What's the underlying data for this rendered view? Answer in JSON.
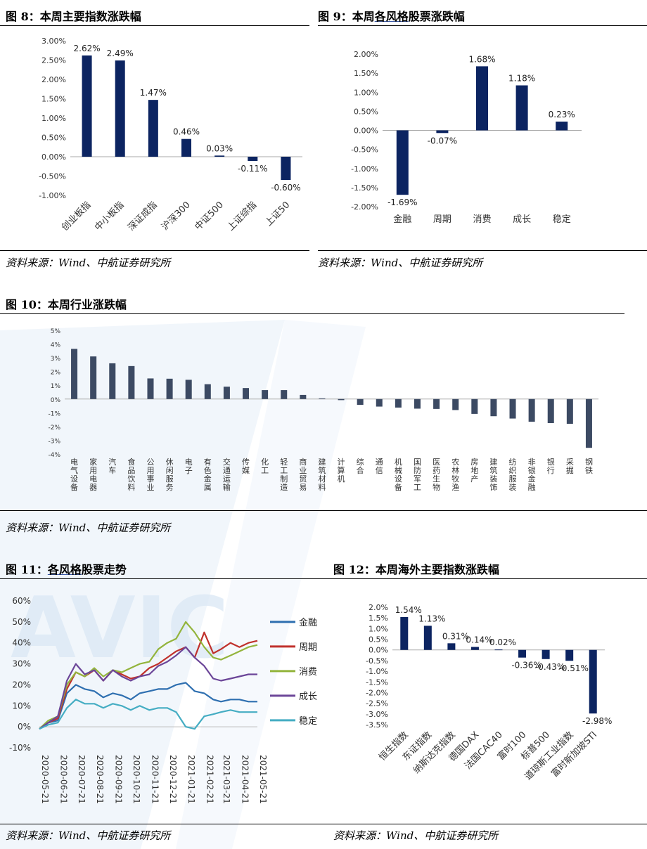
{
  "colors": {
    "navy": "#0c2461",
    "slate": "#3c4a63",
    "s_finance": "#2e6fb0",
    "s_cycle": "#c0312c",
    "s_consumer": "#93b43c",
    "s_growth": "#6b4598",
    "s_stable": "#45adc3",
    "watermark": "#e6eff8"
  },
  "watermark_text": "AVIC",
  "fig8": {
    "title_prefix": "图 8：",
    "title_rest": "本周主要指数涨跌幅",
    "source": "资料来源：Wind、中航证券研究所"
  },
  "fig9": {
    "title_prefix": "图 9：本周",
    "title_ul": "各风格",
    "title_rest": "股票涨跌幅",
    "source": "资料来源：Wind、中航证券研究所"
  },
  "fig10": {
    "title": "图 10：本周行业涨跌幅",
    "source": "资料来源：Wind、中航证券研究所"
  },
  "fig11": {
    "title_prefix": "图 11：",
    "title_ul": "各风格",
    "title_rest": "股票走势",
    "source": "资料来源：Wind、中航证券研究所"
  },
  "fig12": {
    "title": "图 12：本周海外主要指数涨跌幅",
    "source": "资料来源：Wind、中航证券研究所"
  },
  "chart_data": [
    {
      "id": "fig8",
      "type": "bar",
      "title": "本周主要指数涨跌幅",
      "unit": "%",
      "decimals": 2,
      "categories": [
        "创业板指",
        "中小板指",
        "深证成指",
        "沪深300",
        "中证500",
        "上证综指",
        "上证50"
      ],
      "values": [
        2.62,
        2.49,
        1.47,
        0.46,
        0.03,
        -0.11,
        -0.6
      ],
      "ylim": [
        -1.0,
        3.0
      ],
      "yticks": [
        3.0,
        2.5,
        2.0,
        1.5,
        1.0,
        0.5,
        0.0,
        -0.5,
        -1.0
      ],
      "ytick_labels": [
        "3.00%",
        "2.50%",
        "2.00%",
        "1.50%",
        "1.00%",
        "0.50%",
        "0.00%",
        "-0.50%",
        "-1.00%"
      ],
      "data_labels": [
        "2.62%",
        "2.49%",
        "1.47%",
        "0.46%",
        "0.03%",
        "-0.11%",
        "-0.60%"
      ]
    },
    {
      "id": "fig9",
      "type": "bar",
      "title": "本周各风格股票涨跌幅",
      "unit": "%",
      "decimals": 2,
      "categories": [
        "金融",
        "周期",
        "消费",
        "成长",
        "稳定"
      ],
      "values": [
        -1.69,
        -0.07,
        1.68,
        1.18,
        0.23
      ],
      "ylim": [
        -2.0,
        2.0
      ],
      "yticks": [
        2.0,
        1.5,
        1.0,
        0.5,
        0.0,
        -0.5,
        -1.0,
        -1.5,
        -2.0
      ],
      "ytick_labels": [
        "2.00%",
        "1.50%",
        "1.00%",
        "0.50%",
        "0.00%",
        "-0.50%",
        "-1.00%",
        "-1.50%",
        "-2.00%"
      ],
      "data_labels": [
        "-1.69%",
        "-0.07%",
        "1.68%",
        "1.18%",
        "0.23%"
      ]
    },
    {
      "id": "fig10",
      "type": "bar",
      "title": "本周行业涨跌幅",
      "unit": "%",
      "categories": [
        "电气设备",
        "家用电器",
        "汽车",
        "食品饮料",
        "公用事业",
        "休闲服务",
        "电子",
        "有色金属",
        "交通运输",
        "传媒",
        "化工",
        "轻工制造",
        "商业贸易",
        "建筑材料",
        "计算机",
        "综合",
        "通信",
        "机械设备",
        "国防军工",
        "医药生物",
        "农林牧渔",
        "房地产",
        "建筑装饰",
        "纺织服装",
        "非银金融",
        "银行",
        "采掘",
        "钢铁"
      ],
      "values": [
        3.65,
        3.1,
        2.6,
        2.4,
        1.5,
        1.48,
        1.4,
        1.08,
        0.9,
        0.8,
        0.65,
        0.65,
        0.3,
        0.05,
        -0.08,
        -0.42,
        -0.55,
        -0.62,
        -0.7,
        -0.72,
        -0.8,
        -1.08,
        -1.25,
        -1.42,
        -1.65,
        -1.75,
        -1.8,
        -3.55
      ],
      "ylim": [
        -4,
        5
      ],
      "yticks": [
        5,
        4,
        3,
        2,
        1,
        0,
        -1,
        -2,
        -3,
        -4
      ],
      "ytick_labels": [
        "5%",
        "4%",
        "3%",
        "2%",
        "1%",
        "0%",
        "-1%",
        "-2%",
        "-3%",
        "-4%"
      ]
    },
    {
      "id": "fig11",
      "type": "line",
      "title": "各风格股票走势",
      "unit": "%",
      "ylim": [
        -10,
        60
      ],
      "yticks": [
        60,
        50,
        40,
        30,
        20,
        10,
        0,
        -10
      ],
      "ytick_labels": [
        "60%",
        "50%",
        "40%",
        "30%",
        "20%",
        "10%",
        "0%",
        "-10%"
      ],
      "x_tick_labels": [
        "2020-05-21",
        "2020-06-21",
        "2020-07-21",
        "2020-08-21",
        "2020-09-21",
        "2020-10-21",
        "2020-11-21",
        "2020-12-21",
        "2021-01-21",
        "2021-02-21",
        "2021-03-21",
        "2021-04-21",
        "2021-05-21"
      ],
      "x": [
        "2020-05-21",
        "2020-06-05",
        "2020-06-21",
        "2020-07-06",
        "2020-07-21",
        "2020-08-05",
        "2020-08-21",
        "2020-09-05",
        "2020-09-21",
        "2020-10-06",
        "2020-10-21",
        "2020-11-05",
        "2020-11-21",
        "2020-12-06",
        "2020-12-21",
        "2021-01-05",
        "2021-01-21",
        "2021-02-05",
        "2021-02-21",
        "2021-03-08",
        "2021-03-21",
        "2021-04-06",
        "2021-04-21",
        "2021-05-06",
        "2021-05-21"
      ],
      "series": [
        {
          "name": "金融",
          "color_key": "s_finance",
          "values": [
            -1,
            2,
            3,
            16,
            20,
            18,
            17,
            14,
            16,
            15,
            13,
            16,
            17,
            18,
            18,
            20,
            21,
            17,
            16,
            13,
            12,
            13,
            13,
            12,
            12
          ]
        },
        {
          "name": "周期",
          "color_key": "s_cycle",
          "values": [
            -1,
            2,
            4,
            18,
            26,
            24,
            27,
            22,
            27,
            25,
            23,
            24,
            28,
            30,
            33,
            36,
            38,
            33,
            45,
            35,
            37,
            40,
            38,
            40,
            41
          ]
        },
        {
          "name": "消费",
          "color_key": "s_consumer",
          "values": [
            -1,
            3,
            5,
            20,
            26,
            24,
            28,
            24,
            27,
            26,
            28,
            30,
            31,
            37,
            40,
            42,
            50,
            45,
            38,
            33,
            32,
            34,
            36,
            38,
            39
          ]
        },
        {
          "name": "成长",
          "color_key": "s_growth",
          "values": [
            -1,
            2,
            5,
            22,
            30,
            25,
            27,
            22,
            27,
            24,
            22,
            24,
            25,
            29,
            31,
            34,
            38,
            33,
            29,
            23,
            22,
            23,
            24,
            25,
            25
          ]
        },
        {
          "name": "稳定",
          "color_key": "s_stable",
          "values": [
            -1,
            1,
            2,
            9,
            13,
            11,
            11,
            9,
            11,
            10,
            8,
            10,
            8,
            9,
            9,
            7,
            0,
            -1,
            5,
            6,
            7,
            8,
            7,
            7,
            7
          ]
        }
      ]
    },
    {
      "id": "fig12",
      "type": "bar",
      "title": "本周海外主要指数涨跌幅",
      "unit": "%",
      "decimals": 2,
      "categories": [
        "恒生指数",
        "东证指数",
        "纳斯达克指数",
        "德国DAX",
        "法国CAC40",
        "富时100",
        "标普500",
        "道琼斯工业指数",
        "富时新加坡STI"
      ],
      "values": [
        1.54,
        1.13,
        0.31,
        0.14,
        0.02,
        -0.36,
        -0.43,
        -0.51,
        -2.98
      ],
      "ylim": [
        -3.5,
        2.0
      ],
      "yticks": [
        2.0,
        1.5,
        1.0,
        0.5,
        0.0,
        -0.5,
        -1.0,
        -1.5,
        -2.0,
        -2.5,
        -3.0,
        -3.5
      ],
      "ytick_labels": [
        "2.0%",
        "1.5%",
        "1.0%",
        "0.5%",
        "0.0%",
        "-0.5%",
        "-1.0%",
        "-1.5%",
        "-2.0%",
        "-2.5%",
        "-3.0%",
        "-3.5%"
      ],
      "data_labels": [
        "1.54%",
        "1.13%",
        "0.31%",
        "0.14%",
        "0.02%",
        "-0.36%",
        "-0.43%",
        "-0.51%",
        "-2.98%"
      ]
    }
  ]
}
